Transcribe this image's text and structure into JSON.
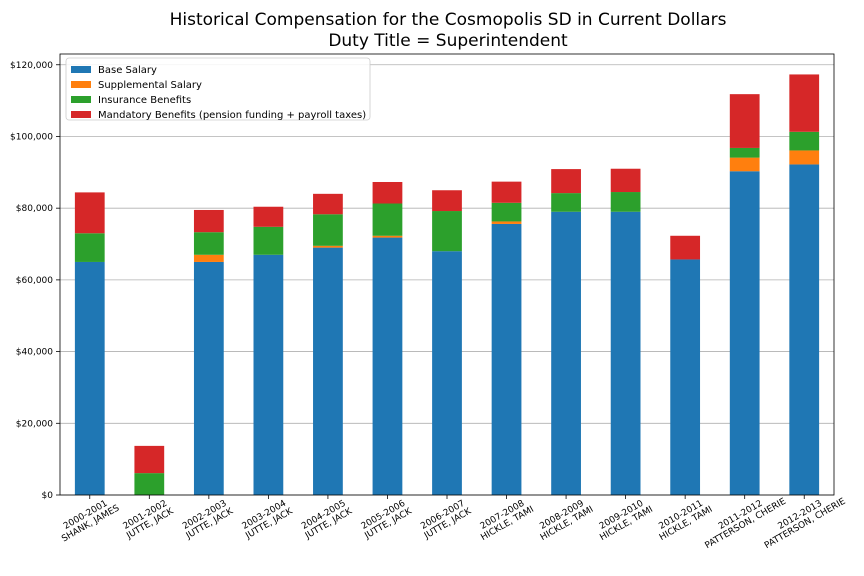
{
  "chart_data": {
    "type": "bar",
    "stacked": true,
    "title_line1": "Historical Compensation for the Cosmopolis SD in Current Dollars",
    "title_line2": "Duty Title = Superintendent",
    "xlabel": "",
    "ylabel": "",
    "ylim": [
      0,
      123000
    ],
    "yticks": [
      {
        "value": 0,
        "label": "$0"
      },
      {
        "value": 20000,
        "label": "$20,000"
      },
      {
        "value": 40000,
        "label": "$40,000"
      },
      {
        "value": 60000,
        "label": "$60,000"
      },
      {
        "value": 80000,
        "label": "$80,000"
      },
      {
        "value": 100000,
        "label": "$100,000"
      },
      {
        "value": 120000,
        "label": "$120,000"
      }
    ],
    "grid": "horizontal",
    "legend_position": "top-left",
    "categories": [
      {
        "year": "2000-2001",
        "name": "SHANK, JAMES"
      },
      {
        "year": "2001-2002",
        "name": "JUTTE, JACK"
      },
      {
        "year": "2002-2003",
        "name": "JUTTE, JACK"
      },
      {
        "year": "2003-2004",
        "name": "JUTTE, JACK"
      },
      {
        "year": "2004-2005",
        "name": "JUTTE, JACK"
      },
      {
        "year": "2005-2006",
        "name": "JUTTE, JACK"
      },
      {
        "year": "2006-2007",
        "name": "JUTTE, JACK"
      },
      {
        "year": "2007-2008",
        "name": "HICKLE, TAMI"
      },
      {
        "year": "2008-2009",
        "name": "HICKLE, TAMI"
      },
      {
        "year": "2009-2010",
        "name": "HICKLE, TAMI"
      },
      {
        "year": "2010-2011",
        "name": "HICKLE, TAMI"
      },
      {
        "year": "2011-2012",
        "name": "PATTERSON, CHERIE"
      },
      {
        "year": "2012-2013",
        "name": "PATTERSON, CHERIE"
      }
    ],
    "series": [
      {
        "name": "Base Salary",
        "color": "#1f77b4",
        "values": [
          65000,
          0,
          65000,
          67000,
          69000,
          71800,
          68000,
          75600,
          79000,
          79000,
          65700,
          90300,
          92200
        ]
      },
      {
        "name": "Supplemental Salary",
        "color": "#ff7f0e",
        "values": [
          0,
          0,
          2000,
          0,
          500,
          500,
          0,
          700,
          0,
          0,
          0,
          3800,
          3900
        ]
      },
      {
        "name": "Insurance Benefits",
        "color": "#2ca02c",
        "values": [
          8000,
          6100,
          6300,
          7800,
          8800,
          9000,
          11200,
          5200,
          5200,
          5500,
          0,
          2700,
          5200
        ]
      },
      {
        "name": "Mandatory Benefits (pension funding + payroll taxes)",
        "color": "#d62728",
        "values": [
          11400,
          7600,
          6200,
          5600,
          5700,
          6000,
          5800,
          5900,
          6700,
          6500,
          6600,
          15000,
          16000
        ]
      }
    ]
  }
}
